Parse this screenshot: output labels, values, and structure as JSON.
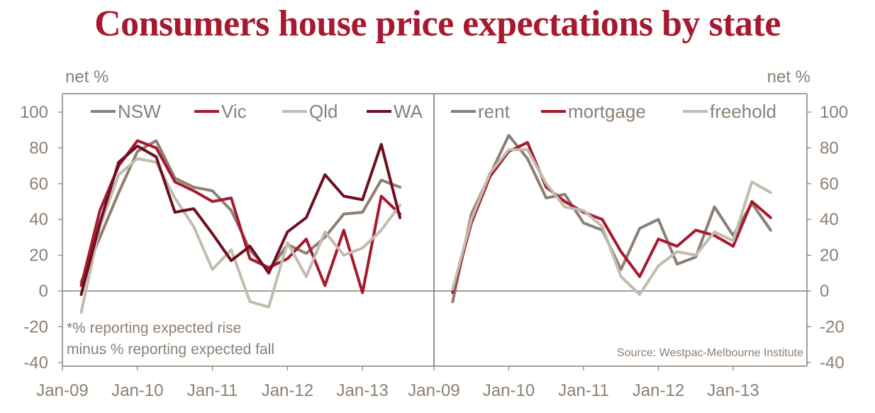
{
  "title": "Consumers house price expectations by state",
  "colors": {
    "nsw": "#8c7f73",
    "vic": "#a6192e",
    "qld": "#c1bcae",
    "wa": "#6d0f1f",
    "axis": "#8c7f73"
  },
  "chart_data": [
    {
      "type": "line",
      "panel": "left",
      "ylabel": "net %",
      "ylim": [
        -40,
        100
      ],
      "yticks": [
        "100",
        "80",
        "60",
        "40",
        "20",
        "0",
        "-20",
        "-40"
      ],
      "xticks": [
        "Jan-09",
        "Jan-10",
        "Jan-11",
        "Jan-12",
        "Jan-13"
      ],
      "x": [
        2009.25,
        2009.5,
        2009.75,
        2010,
        2010.25,
        2010.5,
        2010.75,
        2011,
        2011.25,
        2011.5,
        2011.75,
        2012,
        2012.25,
        2012.5,
        2012.75,
        2013,
        2013.25,
        2013.5
      ],
      "legend": [
        "NSW",
        "Vic",
        "Qld",
        "WA"
      ],
      "series": [
        {
          "name": "NSW",
          "color_key": "nsw",
          "values": [
            5,
            30,
            55,
            78,
            84,
            63,
            58,
            56,
            45,
            23,
            11,
            26,
            21,
            30,
            43,
            44,
            62,
            58
          ]
        },
        {
          "name": "Vic",
          "color_key": "vic",
          "values": [
            3,
            45,
            70,
            84,
            80,
            61,
            56,
            50,
            52,
            18,
            13,
            18,
            29,
            3,
            34,
            -1,
            53,
            43
          ]
        },
        {
          "name": "Qld",
          "color_key": "qld",
          "values": [
            -12,
            36,
            65,
            74,
            72,
            52,
            36,
            12,
            23,
            -6,
            -9,
            27,
            8,
            33,
            20,
            24,
            34,
            48
          ]
        },
        {
          "name": "WA",
          "color_key": "wa",
          "values": [
            -2,
            38,
            72,
            81,
            75,
            44,
            46,
            32,
            17,
            25,
            10,
            33,
            41,
            65,
            53,
            51,
            82,
            41
          ]
        }
      ],
      "note": [
        "*% reporting expected rise",
        "minus % reporting expected fall"
      ]
    },
    {
      "type": "line",
      "panel": "right",
      "ylabel": "net %",
      "ylim": [
        -40,
        100
      ],
      "yticks": [
        "100",
        "80",
        "60",
        "40",
        "20",
        "0",
        "-20",
        "-40"
      ],
      "xticks": [
        "Jan-09",
        "Jan-10",
        "Jan-11",
        "Jan-12",
        "Jan-13"
      ],
      "x": [
        2009.25,
        2009.5,
        2009.75,
        2010,
        2010.25,
        2010.5,
        2010.75,
        2011,
        2011.25,
        2011.5,
        2011.75,
        2012,
        2012.25,
        2012.5,
        2012.75,
        2013,
        2013.25,
        2013.5
      ],
      "legend": [
        "rent",
        "mortgage",
        "freehold"
      ],
      "series": [
        {
          "name": "rent",
          "color_key": "nsw",
          "values": [
            -6,
            43,
            65,
            87,
            74,
            52,
            54,
            38,
            34,
            12,
            35,
            40,
            15,
            19,
            47,
            31,
            49,
            34
          ]
        },
        {
          "name": "mortgage",
          "color_key": "vic",
          "values": [
            -1,
            38,
            64,
            78,
            83,
            58,
            50,
            44,
            40,
            22,
            8,
            29,
            25,
            34,
            31,
            25,
            50,
            41
          ]
        },
        {
          "name": "freehold",
          "color_key": "qld",
          "values": [
            1,
            40,
            66,
            79,
            79,
            60,
            47,
            45,
            36,
            8,
            -2,
            14,
            22,
            20,
            33,
            28,
            61,
            55
          ]
        }
      ],
      "source": "Source: Westpac-Melbourne Institute"
    }
  ]
}
